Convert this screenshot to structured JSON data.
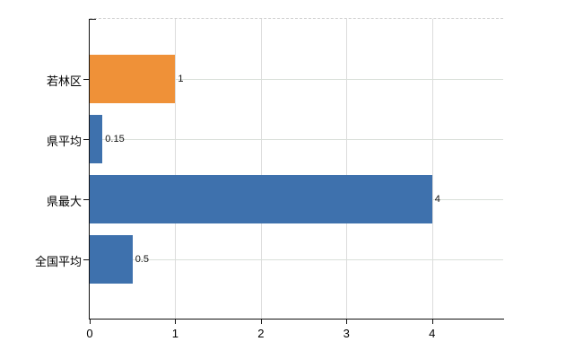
{
  "chart_data": {
    "type": "bar",
    "orientation": "horizontal",
    "title": "",
    "xlabel": "",
    "ylabel": "",
    "categories": [
      "若林区",
      "県平均",
      "県最大",
      "全国平均"
    ],
    "values": [
      1,
      0.15,
      4,
      0.5
    ],
    "value_labels": [
      "1",
      "0.15",
      "4",
      "0.5"
    ],
    "bar_colors": [
      "#ef9138",
      "#3e71ad",
      "#3e71ad",
      "#3e71ad"
    ],
    "x_ticks": [
      "0",
      "1",
      "2",
      "3",
      "4"
    ],
    "x_tick_values": [
      0,
      1,
      2,
      3,
      4
    ],
    "xlim": [
      0,
      4.83
    ],
    "grid": "on",
    "legend": "none",
    "colors": {
      "accent_orange": "#ef9138",
      "bar_blue": "#3e71ad",
      "gridline": "#d9d9d9",
      "axis": "#111111",
      "text": "#000000",
      "background": "#ffffff"
    }
  }
}
